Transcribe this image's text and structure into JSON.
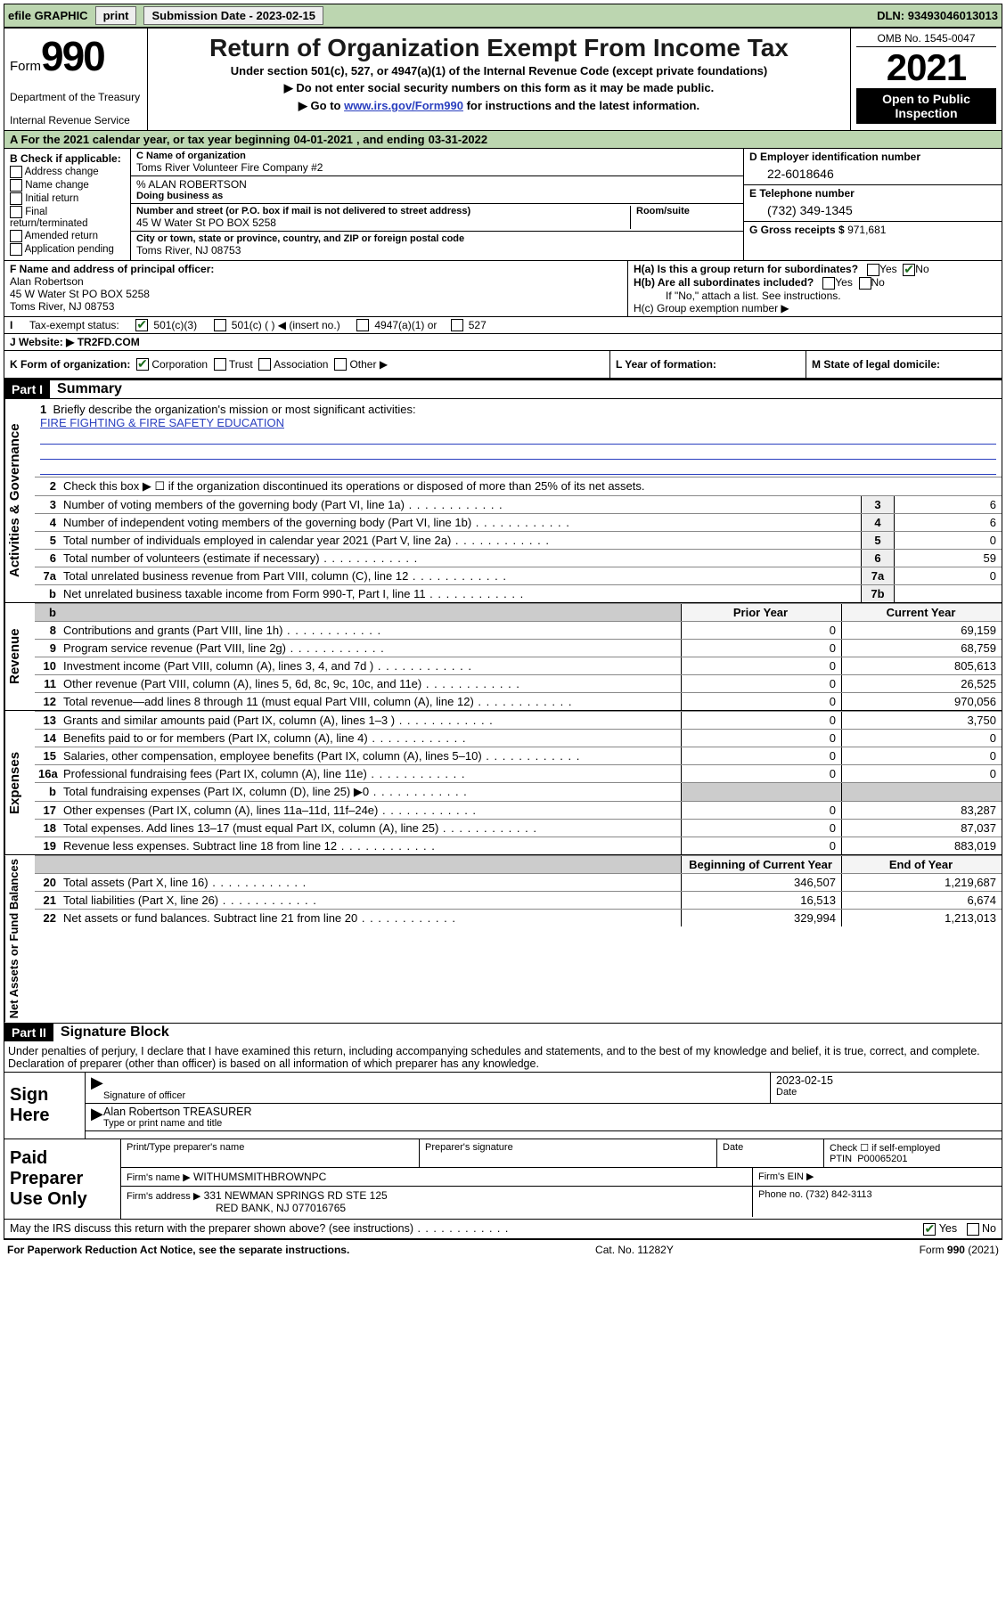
{
  "topbar": {
    "efile": "efile GRAPHIC",
    "print": "print",
    "subdate_label": "Submission Date -",
    "subdate": "2023-02-15",
    "dln_label": "DLN:",
    "dln": "93493046013013"
  },
  "header": {
    "form_word": "Form",
    "form_num": "990",
    "dept": "Department of the Treasury",
    "irs": "Internal Revenue Service",
    "title": "Return of Organization Exempt From Income Tax",
    "sub1": "Under section 501(c), 527, or 4947(a)(1) of the Internal Revenue Code (except private foundations)",
    "sub2": "▶ Do not enter social security numbers on this form as it may be made public.",
    "sub3_pre": "▶ Go to ",
    "sub3_link": "www.irs.gov/Form990",
    "sub3_post": " for instructions and the latest information.",
    "omb": "OMB No. 1545-0047",
    "year": "2021",
    "inspect1": "Open to Public",
    "inspect2": "Inspection"
  },
  "rowA": {
    "lead": "A For the 2021 calendar year, or tax year beginning ",
    "beg": "04-01-2021",
    "mid": " , and ending ",
    "end": "03-31-2022"
  },
  "colB": {
    "hdr": "B Check if applicable:",
    "opts": [
      "Address change",
      "Name change",
      "Initial return",
      "Final return/terminated",
      "Amended return",
      "Application pending"
    ]
  },
  "colC": {
    "name_label": "C Name of organization",
    "name": "Toms River Volunteer Fire Company #2",
    "pct_line": "% ALAN ROBERTSON",
    "dba_label": "Doing business as",
    "street_label": "Number and street (or P.O. box if mail is not delivered to street address)",
    "room_label": "Room/suite",
    "street": "45 W Water St PO BOX 5258",
    "city_label": "City or town, state or province, country, and ZIP or foreign postal code",
    "city": "Toms River, NJ  08753"
  },
  "colD": {
    "ein_label": "D Employer identification number",
    "ein": "22-6018646",
    "tel_label": "E Telephone number",
    "tel": "(732) 349-1345",
    "gross_label": "G Gross receipts $",
    "gross": "971,681"
  },
  "rowF": {
    "label": "F Name and address of principal officer:",
    "name": "Alan Robertson",
    "addr1": "45 W Water St PO BOX 5258",
    "addr2": "Toms River, NJ  08753"
  },
  "rowH": {
    "ha": "H(a)  Is this a group return for subordinates?",
    "hb": "H(b)  Are all subordinates included?",
    "hb_note": "If \"No,\" attach a list. See instructions.",
    "hc": "H(c)  Group exemption number ▶",
    "yes": "Yes",
    "no": "No"
  },
  "rowI": {
    "label": "Tax-exempt status:",
    "o1": "501(c)(3)",
    "o2": "501(c) (   ) ◀ (insert no.)",
    "o3": "4947(a)(1) or",
    "o4": "527"
  },
  "rowJ": {
    "label": "J   Website: ▶",
    "val": " TR2FD.COM"
  },
  "rowK": {
    "k": "K Form of organization:",
    "opts": [
      "Corporation",
      "Trust",
      "Association",
      "Other ▶"
    ],
    "l_lbl": "L Year of formation:",
    "m_lbl": "M State of legal domicile:"
  },
  "partI": {
    "hdr": "Part I",
    "title": "Summary",
    "q1": "Briefly describe the organization's mission or most significant activities:",
    "mission": "FIRE FIGHTING & FIRE SAFETY EDUCATION",
    "q2": "Check this box ▶ ☐  if the organization discontinued its operations or disposed of more than 25% of its net assets."
  },
  "gov_lines": [
    {
      "n": "3",
      "t": "Number of voting members of the governing body (Part VI, line 1a)",
      "box": "3",
      "v": "6"
    },
    {
      "n": "4",
      "t": "Number of independent voting members of the governing body (Part VI, line 1b)",
      "box": "4",
      "v": "6"
    },
    {
      "n": "5",
      "t": "Total number of individuals employed in calendar year 2021 (Part V, line 2a)",
      "box": "5",
      "v": "0"
    },
    {
      "n": "6",
      "t": "Total number of volunteers (estimate if necessary)",
      "box": "6",
      "v": "59"
    },
    {
      "n": "7a",
      "t": "Total unrelated business revenue from Part VIII, column (C), line 12",
      "box": "7a",
      "v": "0"
    },
    {
      "n": "b",
      "t": "Net unrelated business taxable income from Form 990-T, Part I, line 11",
      "box": "7b",
      "v": ""
    }
  ],
  "two_col_hdr": {
    "prior": "Prior Year",
    "cur": "Current Year"
  },
  "rev_lines": [
    {
      "n": "8",
      "t": "Contributions and grants (Part VIII, line 1h)",
      "p": "0",
      "c": "69,159"
    },
    {
      "n": "9",
      "t": "Program service revenue (Part VIII, line 2g)",
      "p": "0",
      "c": "68,759"
    },
    {
      "n": "10",
      "t": "Investment income (Part VIII, column (A), lines 3, 4, and 7d )",
      "p": "0",
      "c": "805,613"
    },
    {
      "n": "11",
      "t": "Other revenue (Part VIII, column (A), lines 5, 6d, 8c, 9c, 10c, and 11e)",
      "p": "0",
      "c": "26,525"
    },
    {
      "n": "12",
      "t": "Total revenue—add lines 8 through 11 (must equal Part VIII, column (A), line 12)",
      "p": "0",
      "c": "970,056"
    }
  ],
  "exp_lines": [
    {
      "n": "13",
      "t": "Grants and similar amounts paid (Part IX, column (A), lines 1–3 )",
      "p": "0",
      "c": "3,750"
    },
    {
      "n": "14",
      "t": "Benefits paid to or for members (Part IX, column (A), line 4)",
      "p": "0",
      "c": "0"
    },
    {
      "n": "15",
      "t": "Salaries, other compensation, employee benefits (Part IX, column (A), lines 5–10)",
      "p": "0",
      "c": "0"
    },
    {
      "n": "16a",
      "t": "Professional fundraising fees (Part IX, column (A), line 11e)",
      "p": "0",
      "c": "0"
    },
    {
      "n": "b",
      "t": "Total fundraising expenses (Part IX, column (D), line 25) ▶0",
      "p": "",
      "c": "",
      "shade": true
    },
    {
      "n": "17",
      "t": "Other expenses (Part IX, column (A), lines 11a–11d, 11f–24e)",
      "p": "0",
      "c": "83,287"
    },
    {
      "n": "18",
      "t": "Total expenses. Add lines 13–17 (must equal Part IX, column (A), line 25)",
      "p": "0",
      "c": "87,037"
    },
    {
      "n": "19",
      "t": "Revenue less expenses. Subtract line 18 from line 12",
      "p": "0",
      "c": "883,019"
    }
  ],
  "na_hdr": {
    "beg": "Beginning of Current Year",
    "end": "End of Year"
  },
  "na_lines": [
    {
      "n": "20",
      "t": "Total assets (Part X, line 16)",
      "p": "346,507",
      "c": "1,219,687"
    },
    {
      "n": "21",
      "t": "Total liabilities (Part X, line 26)",
      "p": "16,513",
      "c": "6,674"
    },
    {
      "n": "22",
      "t": "Net assets or fund balances. Subtract line 21 from line 20",
      "p": "329,994",
      "c": "1,213,013"
    }
  ],
  "partII": {
    "hdr": "Part II",
    "title": "Signature Block",
    "decl": "Under penalties of perjury, I declare that I have examined this return, including accompanying schedules and statements, and to the best of my knowledge and belief, it is true, correct, and complete. Declaration of preparer (other than officer) is based on all information of which preparer has any knowledge."
  },
  "sign": {
    "here": "Sign Here",
    "sig_officer_lbl": "Signature of officer",
    "date_lbl": "Date",
    "date_val": "2023-02-15",
    "name_title": "Alan Robertson  TREASURER",
    "type_lbl": "Type or print name and title"
  },
  "paid": {
    "here": "Paid Preparer Use Only",
    "r1": {
      "c1": "Print/Type preparer's name",
      "c2": "Preparer's signature",
      "c3": "Date",
      "c4a": "Check ☐ if self-employed",
      "c4b": "PTIN",
      "c4v": "P00065201"
    },
    "r2": {
      "lbl": "Firm's name    ▶",
      "val": "WITHUMSMITHBROWNPC",
      "ein": "Firm's EIN ▶"
    },
    "r3": {
      "lbl": "Firm's address ▶",
      "val1": "331 NEWMAN SPRINGS RD STE 125",
      "val2": "RED BANK, NJ  077016765",
      "ph_lbl": "Phone no.",
      "ph": "(732) 842-3113"
    }
  },
  "footer": {
    "discuss": "May the IRS discuss this return with the preparer shown above? (see instructions)",
    "yes": "Yes",
    "no": "No",
    "pra": "For Paperwork Reduction Act Notice, see the separate instructions.",
    "cat": "Cat. No. 11282Y",
    "form": "Form 990 (2021)"
  },
  "tabs": {
    "gov": "Activities & Governance",
    "rev": "Revenue",
    "exp": "Expenses",
    "na": "Net Assets or Fund Balances"
  }
}
